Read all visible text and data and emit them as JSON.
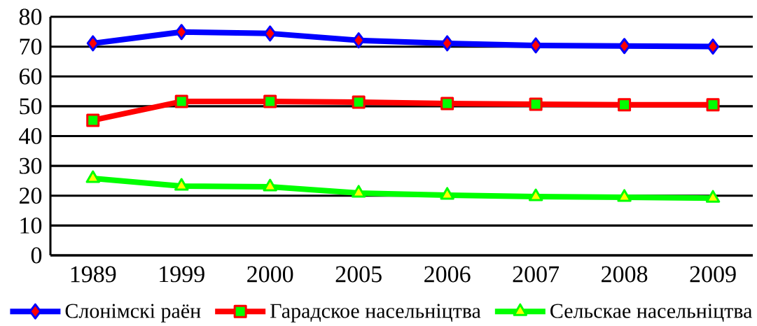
{
  "chart_data": {
    "type": "line",
    "categories": [
      "1989",
      "1999",
      "2000",
      "2005",
      "2006",
      "2007",
      "2008",
      "2009"
    ],
    "series": [
      {
        "name": "Слонімскі раён",
        "color": "#0000ff",
        "marker": "diamond",
        "values": [
          71.1,
          74.9,
          74.4,
          72.1,
          71.1,
          70.4,
          70.2,
          70.0
        ]
      },
      {
        "name": "Гарадское насельніцтва",
        "color": "#ff0000",
        "marker": "square",
        "values": [
          45.3,
          51.6,
          51.6,
          51.4,
          50.9,
          50.7,
          50.5,
          50.5
        ]
      },
      {
        "name": "Сельскае насельніцтва",
        "color": "#00ff00",
        "marker": "triangle",
        "values": [
          25.8,
          23.2,
          23.0,
          20.9,
          20.2,
          19.7,
          19.5,
          19.2
        ]
      }
    ],
    "ylim": [
      0,
      80
    ],
    "yticks": [
      0,
      10,
      20,
      30,
      40,
      50,
      60,
      70,
      80
    ],
    "grid": "y",
    "legend": "bottom"
  }
}
